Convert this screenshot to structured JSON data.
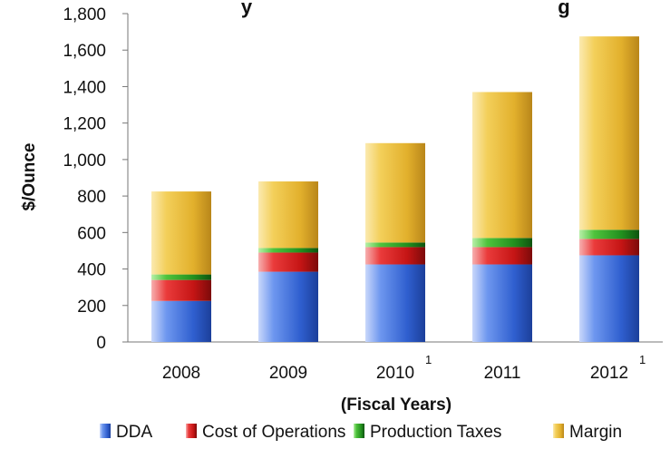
{
  "chart_data": {
    "type": "bar",
    "stacked": true,
    "title": "...y ... ...g",
    "title_visible_fragments": [
      "y",
      "g"
    ],
    "xlabel": "(Fiscal Years)",
    "ylabel": "$/Ounce",
    "ylim": [
      0,
      1800
    ],
    "yticks": [
      "0",
      "200",
      "400",
      "600",
      "800",
      "1,000",
      "1,200",
      "1,400",
      "1,600",
      "1,800"
    ],
    "grid": false,
    "legend_position": "bottom",
    "categories": [
      "2008",
      "2009",
      "2010",
      "2011",
      "2012"
    ],
    "category_footnotes": [
      "",
      "",
      "1",
      "",
      "1"
    ],
    "series": [
      {
        "name": "DDA",
        "color": "#3a6fd8",
        "values": [
          225,
          385,
          425,
          425,
          475
        ]
      },
      {
        "name": "Cost of Operations",
        "color": "#d42020",
        "values": [
          115,
          105,
          95,
          95,
          90
        ]
      },
      {
        "name": "Production Taxes",
        "color": "#2ea52e",
        "values": [
          30,
          25,
          25,
          50,
          50
        ]
      },
      {
        "name": "Margin",
        "color": "#f0c232",
        "values": [
          455,
          365,
          545,
          800,
          1060
        ]
      }
    ]
  }
}
